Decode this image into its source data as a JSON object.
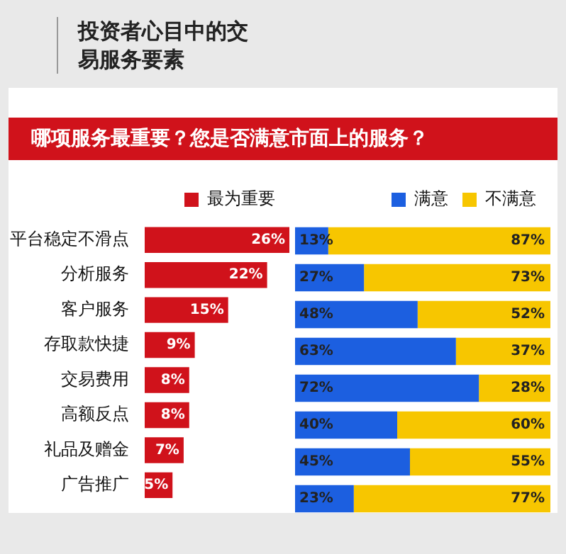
{
  "chart_data": [
    {
      "type": "bar",
      "title": "哪项服务最重要？您是否满意市面上的服务？",
      "subtitle": "投资者心目中的交易服务要素",
      "orientation": "horizontal",
      "categories": [
        "平台稳定不滑点",
        "分析服务",
        "客户服务",
        "存取款快捷",
        "交易费用",
        "高额反点",
        "礼品及赠金",
        "广告推广"
      ],
      "xlim": [
        0,
        26
      ],
      "tick_labels": "y",
      "legend": "top",
      "series": [
        {
          "name": "最为重要",
          "color": "#d0121b",
          "values": [
            26,
            22,
            15,
            9,
            8,
            8,
            7,
            5
          ],
          "value_labels": [
            "26%",
            "22%",
            "15%",
            "9%",
            "8%",
            "8%",
            "7%",
            "5%"
          ]
        }
      ]
    },
    {
      "type": "bar",
      "orientation": "horizontal",
      "stacked": true,
      "categories": [
        null,
        null,
        null,
        null,
        null,
        null,
        null,
        null
      ],
      "xlim": [
        0,
        100
      ],
      "tick_labels": false,
      "legend": "top",
      "series": [
        {
          "name": "满意",
          "color": "#1c5fe0",
          "values": [
            13,
            27,
            48,
            63,
            72,
            40,
            45,
            23
          ],
          "value_labels": [
            "13%",
            "27%",
            "48%",
            "63%",
            "72%",
            "40%",
            "45%",
            "23%"
          ]
        },
        {
          "name": "不满意",
          "color": "#f7c600",
          "values": [
            87,
            73,
            52,
            37,
            28,
            60,
            55,
            77
          ],
          "value_labels": [
            "87%",
            "73%",
            "52%",
            "37%",
            "28%",
            "60%",
            "55%",
            "77%"
          ]
        }
      ]
    }
  ]
}
